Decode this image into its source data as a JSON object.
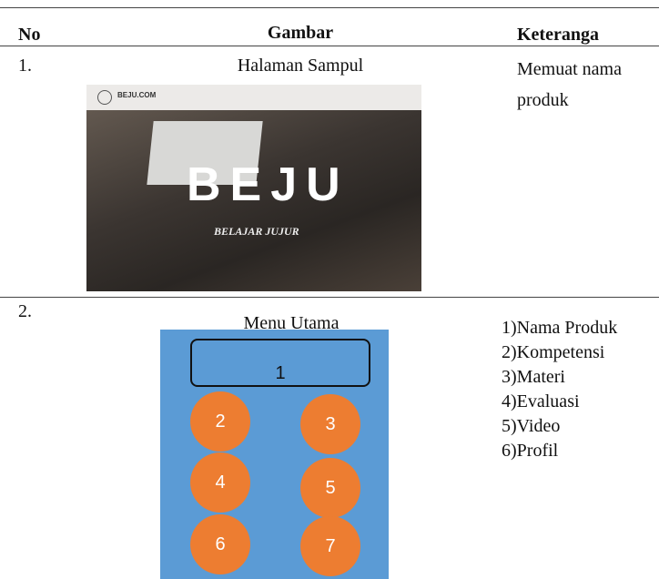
{
  "table": {
    "header": [
      "No",
      "Gambar",
      "Keteranga"
    ],
    "rows": [
      {
        "no": "1.",
        "gambar": {
          "caption": "Halaman Sampul",
          "image": {
            "site": "BEJU.COM",
            "title": "BEJU",
            "subtitle": "BELAJAR JUJUR"
          }
        },
        "keterangan": [
          "Memuat nama",
          "produk"
        ]
      },
      {
        "no": "2.",
        "gambar": {
          "caption": "Menu Utama",
          "menu": [
            "1",
            "2",
            "3",
            "4",
            "5",
            "6",
            "7"
          ]
        },
        "keterangan": [
          "1)Nama Produk",
          "2)Kompetensi",
          "3)Materi",
          "4)Evaluasi",
          "5)Video",
          "6)Profil"
        ]
      }
    ]
  }
}
